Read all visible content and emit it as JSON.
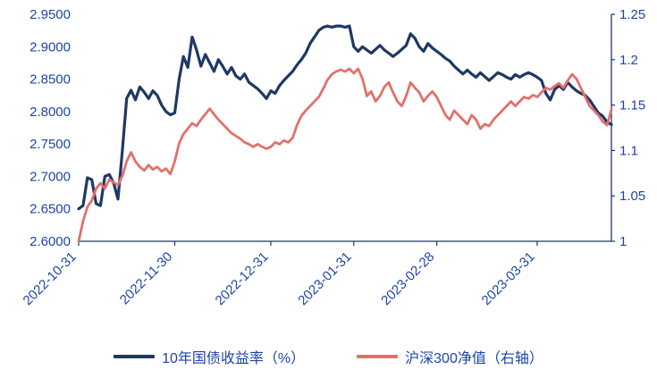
{
  "colors": {
    "background": "#FFFFFF",
    "axis_text": "#1E45A6",
    "axis_line": "#1F3864",
    "series_yield": "#1F3864",
    "series_csi300": "#E2706C"
  },
  "legend": {
    "items": [
      {
        "label": "10年国债收益率（%）"
      },
      {
        "label": "沪深300净值（右轴）"
      }
    ]
  },
  "chart_data": {
    "type": "line",
    "title": "",
    "xlabel": "",
    "ylabel_left": "",
    "ylabel_right": "",
    "grid": false,
    "legend_position": "bottom",
    "x_tick_labels": [
      "2022-10-31",
      "2022-11-30",
      "2022-12-31",
      "2023-01-31",
      "2023-02-28",
      "2023-03-31"
    ],
    "x_tick_indices": [
      0,
      22,
      44,
      63,
      82,
      105
    ],
    "left_axis": {
      "min": 2.6,
      "max": 2.95,
      "ticks": [
        "2.6000",
        "2.6500",
        "2.7000",
        "2.7500",
        "2.8000",
        "2.8500",
        "2.9000",
        "2.9500"
      ]
    },
    "right_axis": {
      "min": 1.0,
      "max": 1.25,
      "ticks": [
        "1",
        "1.05",
        "1.1",
        "1.15",
        "1.2",
        "1.25"
      ]
    },
    "series": [
      {
        "name": "10年国债收益率（%）",
        "axis": "left",
        "color": "#1F3864",
        "values": [
          2.65,
          2.655,
          2.698,
          2.695,
          2.658,
          2.655,
          2.7,
          2.703,
          2.69,
          2.665,
          2.74,
          2.82,
          2.833,
          2.818,
          2.838,
          2.83,
          2.82,
          2.832,
          2.825,
          2.81,
          2.8,
          2.795,
          2.798,
          2.85,
          2.885,
          2.868,
          2.915,
          2.895,
          2.87,
          2.888,
          2.875,
          2.862,
          2.88,
          2.87,
          2.858,
          2.868,
          2.855,
          2.85,
          2.858,
          2.845,
          2.84,
          2.835,
          2.828,
          2.82,
          2.832,
          2.828,
          2.84,
          2.848,
          2.855,
          2.862,
          2.872,
          2.88,
          2.89,
          2.905,
          2.915,
          2.925,
          2.93,
          2.932,
          2.93,
          2.932,
          2.932,
          2.93,
          2.932,
          2.9,
          2.893,
          2.9,
          2.895,
          2.89,
          2.896,
          2.902,
          2.895,
          2.89,
          2.885,
          2.89,
          2.896,
          2.902,
          2.92,
          2.913,
          2.9,
          2.893,
          2.905,
          2.898,
          2.893,
          2.888,
          2.882,
          2.878,
          2.87,
          2.864,
          2.858,
          2.864,
          2.858,
          2.853,
          2.86,
          2.854,
          2.848,
          2.854,
          2.86,
          2.857,
          2.853,
          2.85,
          2.857,
          2.853,
          2.857,
          2.86,
          2.857,
          2.853,
          2.848,
          2.828,
          2.818,
          2.834,
          2.84,
          2.834,
          2.845,
          2.838,
          2.832,
          2.828,
          2.825,
          2.818,
          2.808,
          2.798,
          2.793,
          2.784,
          2.78
        ]
      },
      {
        "name": "沪深300净值（右轴）",
        "axis": "right",
        "color": "#E2706C",
        "values": [
          1.0,
          1.022,
          1.038,
          1.045,
          1.058,
          1.064,
          1.058,
          1.068,
          1.065,
          1.062,
          1.072,
          1.088,
          1.098,
          1.088,
          1.082,
          1.078,
          1.084,
          1.079,
          1.082,
          1.077,
          1.08,
          1.074,
          1.088,
          1.108,
          1.118,
          1.124,
          1.13,
          1.127,
          1.134,
          1.14,
          1.146,
          1.14,
          1.134,
          1.129,
          1.124,
          1.119,
          1.116,
          1.113,
          1.109,
          1.107,
          1.104,
          1.107,
          1.104,
          1.102,
          1.104,
          1.109,
          1.107,
          1.111,
          1.109,
          1.114,
          1.128,
          1.138,
          1.144,
          1.149,
          1.154,
          1.159,
          1.168,
          1.178,
          1.184,
          1.187,
          1.189,
          1.187,
          1.19,
          1.185,
          1.19,
          1.179,
          1.16,
          1.165,
          1.154,
          1.16,
          1.17,
          1.175,
          1.164,
          1.154,
          1.149,
          1.16,
          1.175,
          1.169,
          1.164,
          1.154,
          1.16,
          1.165,
          1.159,
          1.149,
          1.139,
          1.134,
          1.144,
          1.139,
          1.134,
          1.129,
          1.139,
          1.134,
          1.124,
          1.129,
          1.127,
          1.134,
          1.139,
          1.144,
          1.149,
          1.154,
          1.149,
          1.154,
          1.159,
          1.157,
          1.161,
          1.159,
          1.164,
          1.169,
          1.167,
          1.171,
          1.174,
          1.169,
          1.177,
          1.184,
          1.179,
          1.169,
          1.159,
          1.149,
          1.144,
          1.139,
          1.132,
          1.128,
          1.145
        ]
      }
    ]
  }
}
